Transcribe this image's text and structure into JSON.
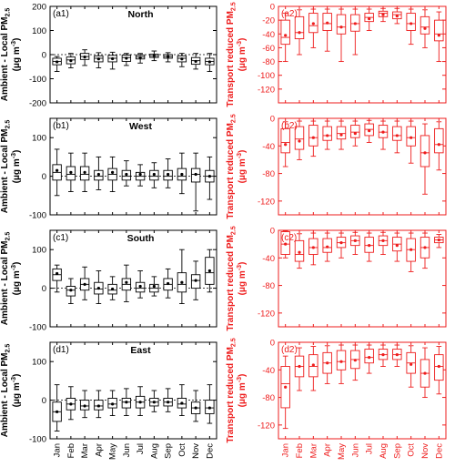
{
  "figure": {
    "left_ylabel_main": "Ambient - Local PM",
    "left_ylabel_sub": "2.5",
    "left_ylabel_unit": "(μg m",
    "left_ylabel_unit_sup": "-3",
    "left_ylabel_unit_end": ")",
    "right_ylabel_main": "Transport reduced PM",
    "right_ylabel_sub": "2.5",
    "right_ylabel_unit": "(μg m",
    "right_ylabel_unit_sup": "-3",
    "right_ylabel_unit_end": ")",
    "months": [
      "Jan",
      "Feb",
      "Mar",
      "Apr",
      "May",
      "Jun",
      "Jul",
      "Aug",
      "Sep",
      "Oct",
      "Nov",
      "Dec"
    ],
    "colors": {
      "left": "#000000",
      "right": "#ee1c1c"
    }
  },
  "chart_data": [
    {
      "type": "box",
      "panel": "a1",
      "label": "(a1)",
      "region_title": "North",
      "ylim": [
        -200,
        200
      ],
      "yticks": [
        -200,
        -100,
        0,
        100,
        200
      ],
      "zero_line": true,
      "boxes": [
        {
          "month": "Jan",
          "min": -70,
          "q1": -42,
          "median": -28,
          "q3": -15,
          "max": -8,
          "mean": -30
        },
        {
          "month": "Feb",
          "min": -55,
          "q1": -38,
          "median": -22,
          "q3": -10,
          "max": 5,
          "mean": -25
        },
        {
          "month": "Mar",
          "min": -45,
          "q1": -20,
          "median": -8,
          "q3": 5,
          "max": 20,
          "mean": -10
        },
        {
          "month": "Apr",
          "min": -55,
          "q1": -30,
          "median": -15,
          "q3": -5,
          "max": 8,
          "mean": -18
        },
        {
          "month": "May",
          "min": -60,
          "q1": -30,
          "median": -15,
          "q3": -3,
          "max": 10,
          "mean": -17
        },
        {
          "month": "Jun",
          "min": -45,
          "q1": -28,
          "median": -12,
          "q3": -2,
          "max": 5,
          "mean": -15
        },
        {
          "month": "Jul",
          "min": -35,
          "q1": -18,
          "median": -10,
          "q3": -2,
          "max": 5,
          "mean": -12
        },
        {
          "month": "Aug",
          "min": -25,
          "q1": -12,
          "median": -5,
          "q3": 2,
          "max": 15,
          "mean": -5
        },
        {
          "month": "Sep",
          "min": -30,
          "q1": -15,
          "median": -8,
          "q3": 0,
          "max": 8,
          "mean": -8
        },
        {
          "month": "Oct",
          "min": -50,
          "q1": -30,
          "median": -15,
          "q3": -5,
          "max": 5,
          "mean": -18
        },
        {
          "month": "Nov",
          "min": -60,
          "q1": -40,
          "median": -25,
          "q3": -12,
          "max": 5,
          "mean": -28
        },
        {
          "month": "Dec",
          "min": -70,
          "q1": -42,
          "median": -28,
          "q3": -15,
          "max": 5,
          "mean": -30
        }
      ]
    },
    {
      "type": "box",
      "panel": "a2",
      "label": "(a2)",
      "ylim": [
        -140,
        0
      ],
      "yticks": [
        -120,
        -100,
        -80,
        -60,
        -40,
        -20,
        0
      ],
      "boxes": [
        {
          "month": "Jan",
          "min": -80,
          "q1": -55,
          "median": -45,
          "q3": -20,
          "max": -10,
          "mean": -42
        },
        {
          "month": "Feb",
          "min": -70,
          "q1": -47,
          "median": -38,
          "q3": -15,
          "max": -5,
          "mean": -38
        },
        {
          "month": "Mar",
          "min": -60,
          "q1": -38,
          "median": -28,
          "q3": -10,
          "max": -4,
          "mean": -25
        },
        {
          "month": "Apr",
          "min": -65,
          "q1": -35,
          "median": -25,
          "q3": -10,
          "max": -4,
          "mean": -24
        },
        {
          "month": "May",
          "min": -80,
          "q1": -40,
          "median": -30,
          "q3": -12,
          "max": -4,
          "mean": -30
        },
        {
          "month": "Jun",
          "min": -70,
          "q1": -36,
          "median": -25,
          "q3": -12,
          "max": -4,
          "mean": -25
        },
        {
          "month": "Jul",
          "min": -35,
          "q1": -22,
          "median": -16,
          "q3": -10,
          "max": -4,
          "mean": -18
        },
        {
          "month": "Aug",
          "min": -22,
          "q1": -15,
          "median": -10,
          "q3": -7,
          "max": -3,
          "mean": -12
        },
        {
          "month": "Sep",
          "min": -25,
          "q1": -18,
          "median": -12,
          "q3": -8,
          "max": -3,
          "mean": -14
        },
        {
          "month": "Oct",
          "min": -55,
          "q1": -35,
          "median": -25,
          "q3": -10,
          "max": -4,
          "mean": -25
        },
        {
          "month": "Nov",
          "min": -60,
          "q1": -40,
          "median": -30,
          "q3": -15,
          "max": -5,
          "mean": -32
        },
        {
          "month": "Dec",
          "min": -80,
          "q1": -50,
          "median": -40,
          "q3": -20,
          "max": -8,
          "mean": -42
        }
      ]
    },
    {
      "type": "box",
      "panel": "b1",
      "label": "(b1)",
      "region_title": "West",
      "ylim": [
        -100,
        150
      ],
      "yticks": [
        -100,
        0,
        100
      ],
      "zero_line": true,
      "boxes": [
        {
          "month": "Jan",
          "min": -50,
          "q1": -10,
          "median": 10,
          "q3": 30,
          "max": 70,
          "mean": 15
        },
        {
          "month": "Feb",
          "min": -40,
          "q1": -10,
          "median": 5,
          "q3": 25,
          "max": 60,
          "mean": 10
        },
        {
          "month": "Mar",
          "min": -40,
          "q1": -10,
          "median": 5,
          "q3": 25,
          "max": 60,
          "mean": 10
        },
        {
          "month": "Apr",
          "min": -35,
          "q1": -10,
          "median": 0,
          "q3": 15,
          "max": 50,
          "mean": 5
        },
        {
          "month": "May",
          "min": -40,
          "q1": -10,
          "median": 5,
          "q3": 20,
          "max": 50,
          "mean": 10
        },
        {
          "month": "Jun",
          "min": -25,
          "q1": -10,
          "median": 0,
          "q3": 15,
          "max": 40,
          "mean": 5
        },
        {
          "month": "Jul",
          "min": -25,
          "q1": -10,
          "median": 0,
          "q3": 10,
          "max": 30,
          "mean": 5
        },
        {
          "month": "Aug",
          "min": -30,
          "q1": -10,
          "median": 0,
          "q3": 15,
          "max": 35,
          "mean": 5
        },
        {
          "month": "Sep",
          "min": -30,
          "q1": -10,
          "median": 0,
          "q3": 15,
          "max": 45,
          "mean": 5
        },
        {
          "month": "Oct",
          "min": -45,
          "q1": -10,
          "median": 0,
          "q3": 20,
          "max": 60,
          "mean": 5
        },
        {
          "month": "Nov",
          "min": -90,
          "q1": -15,
          "median": 5,
          "q3": 20,
          "max": 60,
          "mean": 5
        },
        {
          "month": "Dec",
          "min": -60,
          "q1": -15,
          "median": 0,
          "q3": 15,
          "max": 50,
          "mean": 0
        }
      ]
    },
    {
      "type": "box",
      "panel": "b2",
      "label": "(b2)",
      "ylim": [
        -140,
        0
      ],
      "yticks": [
        -120,
        -80,
        -40,
        0
      ],
      "boxes": [
        {
          "month": "Jan",
          "min": -70,
          "q1": -50,
          "median": -35,
          "q3": -15,
          "max": -5,
          "mean": -38
        },
        {
          "month": "Feb",
          "min": -60,
          "q1": -45,
          "median": -30,
          "q3": -12,
          "max": -4,
          "mean": -33
        },
        {
          "month": "Mar",
          "min": -55,
          "q1": -40,
          "median": -28,
          "q3": -10,
          "max": -4,
          "mean": -28
        },
        {
          "month": "Apr",
          "min": -45,
          "q1": -32,
          "median": -25,
          "q3": -12,
          "max": -4,
          "mean": -25
        },
        {
          "month": "May",
          "min": -45,
          "q1": -30,
          "median": -22,
          "q3": -12,
          "max": -4,
          "mean": -24
        },
        {
          "month": "Jun",
          "min": -40,
          "q1": -28,
          "median": -20,
          "q3": -10,
          "max": -4,
          "mean": -22
        },
        {
          "month": "Jul",
          "min": -35,
          "q1": -25,
          "median": -16,
          "q3": -8,
          "max": -3,
          "mean": -18
        },
        {
          "month": "Aug",
          "min": -45,
          "q1": -28,
          "median": -20,
          "q3": -10,
          "max": -4,
          "mean": -20
        },
        {
          "month": "Sep",
          "min": -50,
          "q1": -32,
          "median": -25,
          "q3": -12,
          "max": -4,
          "mean": -25
        },
        {
          "month": "Oct",
          "min": -65,
          "q1": -40,
          "median": -28,
          "q3": -12,
          "max": -4,
          "mean": -28
        },
        {
          "month": "Nov",
          "min": -110,
          "q1": -70,
          "median": -50,
          "q3": -25,
          "max": -8,
          "mean": -50
        },
        {
          "month": "Dec",
          "min": -75,
          "q1": -50,
          "median": -38,
          "q3": -15,
          "max": -5,
          "mean": -38
        }
      ]
    },
    {
      "type": "box",
      "panel": "c1",
      "label": "(c1)",
      "region_title": "South",
      "ylim": [
        -100,
        150
      ],
      "yticks": [
        -100,
        0,
        100
      ],
      "zero_line": true,
      "boxes": [
        {
          "month": "Jan",
          "min": -10,
          "q1": 20,
          "median": 35,
          "q3": 50,
          "max": 60,
          "mean": 38
        },
        {
          "month": "Feb",
          "min": -40,
          "q1": -20,
          "median": -5,
          "q3": 5,
          "max": 25,
          "mean": -5
        },
        {
          "month": "Mar",
          "min": -30,
          "q1": -5,
          "median": 10,
          "q3": 25,
          "max": 55,
          "mean": 10
        },
        {
          "month": "Apr",
          "min": -40,
          "q1": -15,
          "median": -2,
          "q3": 15,
          "max": 45,
          "mean": 0
        },
        {
          "month": "May",
          "min": -30,
          "q1": -15,
          "median": -5,
          "q3": 10,
          "max": 30,
          "mean": -2
        },
        {
          "month": "Jun",
          "min": -35,
          "q1": -5,
          "median": 10,
          "q3": 25,
          "max": 60,
          "mean": 15
        },
        {
          "month": "Jul",
          "min": -25,
          "q1": -10,
          "median": 0,
          "q3": 15,
          "max": 45,
          "mean": 5
        },
        {
          "month": "Aug",
          "min": -20,
          "q1": -10,
          "median": 0,
          "q3": 10,
          "max": 30,
          "mean": 5
        },
        {
          "month": "Sep",
          "min": -25,
          "q1": -5,
          "median": 10,
          "q3": 25,
          "max": 50,
          "mean": 12
        },
        {
          "month": "Oct",
          "min": -40,
          "q1": -10,
          "median": 10,
          "q3": 40,
          "max": 100,
          "mean": 15
        },
        {
          "month": "Nov",
          "min": -30,
          "q1": 0,
          "median": 20,
          "q3": 35,
          "max": 70,
          "mean": 20
        },
        {
          "month": "Dec",
          "min": -10,
          "q1": 10,
          "median": 40,
          "q3": 80,
          "max": 100,
          "mean": 45
        }
      ]
    },
    {
      "type": "box",
      "panel": "c2",
      "label": "(c2)",
      "ylim": [
        -140,
        0
      ],
      "yticks": [
        -120,
        -80,
        -40,
        0
      ],
      "boxes": [
        {
          "month": "Jan",
          "min": -40,
          "q1": -35,
          "median": -20,
          "q3": -2,
          "max": -1,
          "mean": -20
        },
        {
          "month": "Feb",
          "min": -55,
          "q1": -45,
          "median": -35,
          "q3": -15,
          "max": -5,
          "mean": -32
        },
        {
          "month": "Mar",
          "min": -50,
          "q1": -35,
          "median": -25,
          "q3": -12,
          "max": -4,
          "mean": -25
        },
        {
          "month": "Apr",
          "min": -45,
          "q1": -32,
          "median": -25,
          "q3": -12,
          "max": -4,
          "mean": -24
        },
        {
          "month": "May",
          "min": -40,
          "q1": -25,
          "median": -18,
          "q3": -10,
          "max": -4,
          "mean": -18
        },
        {
          "month": "Jun",
          "min": -35,
          "q1": -22,
          "median": -15,
          "q3": -8,
          "max": -3,
          "mean": -15
        },
        {
          "month": "Jul",
          "min": -45,
          "q1": -32,
          "median": -22,
          "q3": -10,
          "max": -4,
          "mean": -22
        },
        {
          "month": "Aug",
          "min": -35,
          "q1": -22,
          "median": -15,
          "q3": -8,
          "max": -3,
          "mean": -15
        },
        {
          "month": "Sep",
          "min": -45,
          "q1": -30,
          "median": -20,
          "q3": -10,
          "max": -4,
          "mean": -22
        },
        {
          "month": "Oct",
          "min": -60,
          "q1": -45,
          "median": -28,
          "q3": -12,
          "max": -4,
          "mean": -28
        },
        {
          "month": "Nov",
          "min": -55,
          "q1": -40,
          "median": -25,
          "q3": -10,
          "max": -4,
          "mean": -25
        },
        {
          "month": "Dec",
          "min": -25,
          "q1": -18,
          "median": -14,
          "q3": -10,
          "max": -6,
          "mean": -14
        }
      ]
    },
    {
      "type": "box",
      "panel": "d1",
      "label": "(d1)",
      "region_title": "East",
      "ylim": [
        -100,
        150
      ],
      "yticks": [
        -100,
        0,
        100
      ],
      "zero_line": true,
      "boxes": [
        {
          "month": "Jan",
          "min": -80,
          "q1": -55,
          "median": -30,
          "q3": -5,
          "max": 40,
          "mean": -30
        },
        {
          "month": "Feb",
          "min": -50,
          "q1": -25,
          "median": -10,
          "q3": 5,
          "max": 35,
          "mean": -10
        },
        {
          "month": "Mar",
          "min": -45,
          "q1": -25,
          "median": -15,
          "q3": 0,
          "max": 25,
          "mean": -15
        },
        {
          "month": "Apr",
          "min": -45,
          "q1": -25,
          "median": -15,
          "q3": 0,
          "max": 25,
          "mean": -15
        },
        {
          "month": "May",
          "min": -40,
          "q1": -20,
          "median": -10,
          "q3": 5,
          "max": 25,
          "mean": -10
        },
        {
          "month": "Jun",
          "min": -40,
          "q1": -20,
          "median": -5,
          "q3": 5,
          "max": 30,
          "mean": -5
        },
        {
          "month": "Jul",
          "min": -40,
          "q1": -20,
          "median": -5,
          "q3": 10,
          "max": 35,
          "mean": -5
        },
        {
          "month": "Aug",
          "min": -30,
          "q1": -15,
          "median": -5,
          "q3": 5,
          "max": 25,
          "mean": -5
        },
        {
          "month": "Sep",
          "min": -30,
          "q1": -15,
          "median": -5,
          "q3": 5,
          "max": 30,
          "mean": -5
        },
        {
          "month": "Oct",
          "min": -40,
          "q1": -20,
          "median": -10,
          "q3": 5,
          "max": 40,
          "mean": -8
        },
        {
          "month": "Nov",
          "min": -55,
          "q1": -35,
          "median": -20,
          "q3": -5,
          "max": 25,
          "mean": -20
        },
        {
          "month": "Dec",
          "min": -60,
          "q1": -35,
          "median": -20,
          "q3": 0,
          "max": 40,
          "mean": -20
        }
      ]
    },
    {
      "type": "box",
      "panel": "d2",
      "label": "(d2)",
      "ylim": [
        -140,
        0
      ],
      "yticks": [
        -120,
        -80,
        -40,
        0
      ],
      "boxes": [
        {
          "month": "Jan",
          "min": -125,
          "q1": -95,
          "median": -60,
          "q3": -35,
          "max": -20,
          "mean": -65
        },
        {
          "month": "Feb",
          "min": -70,
          "q1": -50,
          "median": -35,
          "q3": -20,
          "max": -8,
          "mean": -35
        },
        {
          "month": "Mar",
          "min": -70,
          "q1": -50,
          "median": -35,
          "q3": -18,
          "max": -6,
          "mean": -33
        },
        {
          "month": "Apr",
          "min": -60,
          "q1": -45,
          "median": -30,
          "q3": -15,
          "max": -5,
          "mean": -30
        },
        {
          "month": "May",
          "min": -60,
          "q1": -40,
          "median": -28,
          "q3": -12,
          "max": -4,
          "mean": -28
        },
        {
          "month": "Jun",
          "min": -55,
          "q1": -38,
          "median": -25,
          "q3": -12,
          "max": -4,
          "mean": -26
        },
        {
          "month": "Jul",
          "min": -45,
          "q1": -30,
          "median": -22,
          "q3": -10,
          "max": -4,
          "mean": -22
        },
        {
          "month": "Aug",
          "min": -35,
          "q1": -25,
          "median": -18,
          "q3": -10,
          "max": -4,
          "mean": -18
        },
        {
          "month": "Sep",
          "min": -35,
          "q1": -25,
          "median": -18,
          "q3": -10,
          "max": -4,
          "mean": -18
        },
        {
          "month": "Oct",
          "min": -65,
          "q1": -45,
          "median": -30,
          "q3": -15,
          "max": -5,
          "mean": -32
        },
        {
          "month": "Nov",
          "min": -80,
          "q1": -65,
          "median": -45,
          "q3": -25,
          "max": -8,
          "mean": -45
        },
        {
          "month": "Dec",
          "min": -75,
          "q1": -55,
          "median": -35,
          "q3": -18,
          "max": -6,
          "mean": -35
        }
      ]
    }
  ]
}
